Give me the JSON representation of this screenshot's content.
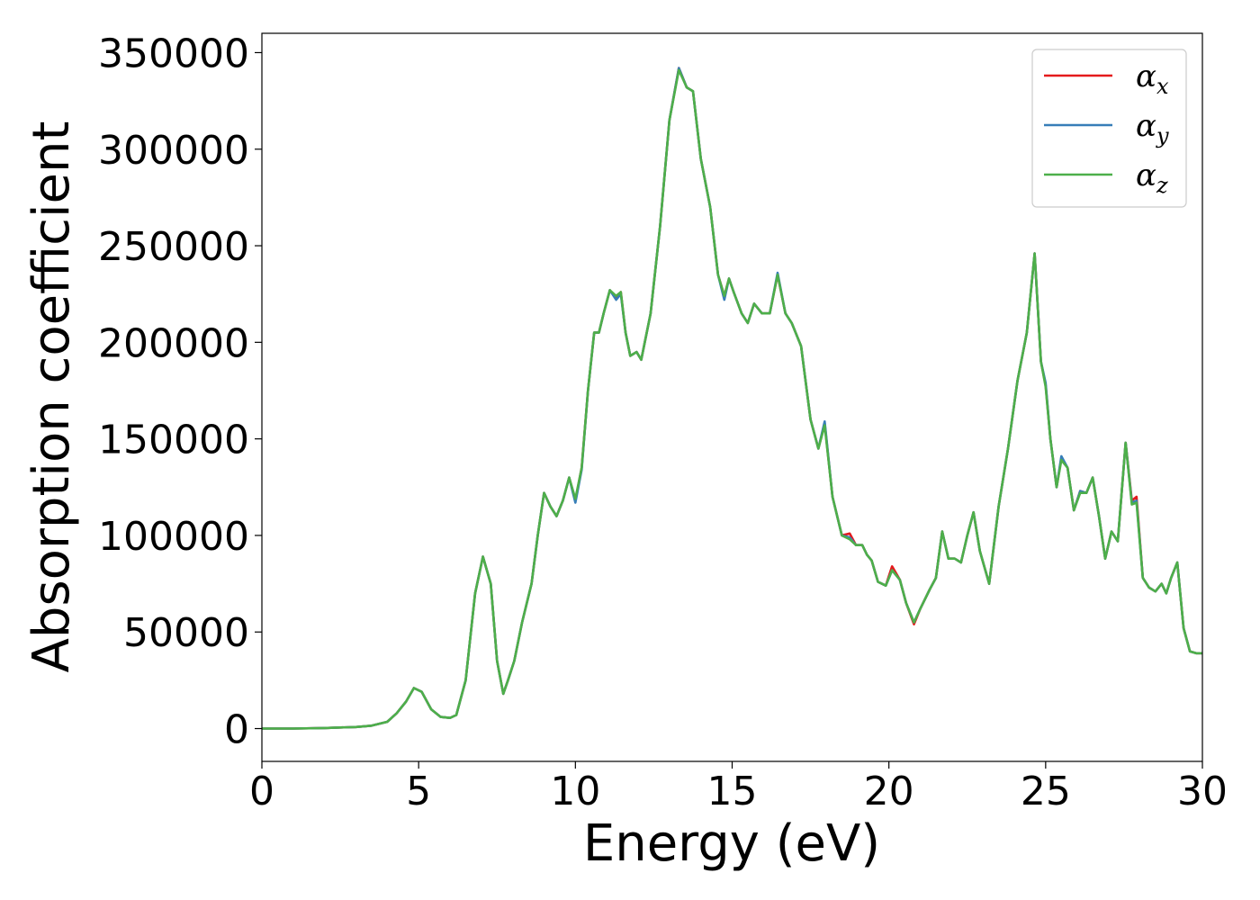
{
  "chart_data": {
    "type": "line",
    "title": "",
    "xlabel": "Energy (eV)",
    "ylabel": "Absorption coefficient",
    "xlim": [
      0,
      30
    ],
    "ylim": [
      -17000,
      360000
    ],
    "xticks": [
      0,
      5,
      10,
      15,
      20,
      25,
      30
    ],
    "xtick_labels": [
      "0",
      "5",
      "10",
      "15",
      "20",
      "25",
      "30"
    ],
    "yticks": [
      0,
      50000,
      100000,
      150000,
      200000,
      250000,
      300000,
      350000
    ],
    "ytick_labels": [
      "0",
      "50000",
      "100000",
      "150000",
      "200000",
      "250000",
      "300000",
      "350000"
    ],
    "grid": false,
    "legend_position": "top-right",
    "legend": [
      {
        "base": "α",
        "sub": "x",
        "color": "#e41a1c"
      },
      {
        "base": "α",
        "sub": "y",
        "color": "#377eb8"
      },
      {
        "base": "α",
        "sub": "z",
        "color": "#4daf4a"
      }
    ],
    "series": [
      {
        "name": "αx",
        "color": "#e41a1c",
        "x": [
          0,
          1,
          2,
          3,
          3.5,
          4,
          4.3,
          4.6,
          4.85,
          5.1,
          5.4,
          5.7,
          6.0,
          6.2,
          6.5,
          6.8,
          7.05,
          7.3,
          7.5,
          7.7,
          7.85,
          8.05,
          8.3,
          8.6,
          8.8,
          9.0,
          9.2,
          9.4,
          9.6,
          9.8,
          10.0,
          10.2,
          10.4,
          10.6,
          10.75,
          10.9,
          11.1,
          11.3,
          11.45,
          11.6,
          11.75,
          11.95,
          12.1,
          12.4,
          12.7,
          13.0,
          13.3,
          13.55,
          13.75,
          14.0,
          14.3,
          14.55,
          14.75,
          14.9,
          15.05,
          15.3,
          15.5,
          15.7,
          15.95,
          16.2,
          16.45,
          16.7,
          16.9,
          17.2,
          17.5,
          17.75,
          17.95,
          18.2,
          18.5,
          18.75,
          18.95,
          19.15,
          19.3,
          19.45,
          19.65,
          19.9,
          20.1,
          20.35,
          20.55,
          20.8,
          21.0,
          21.3,
          21.5,
          21.7,
          21.9,
          22.1,
          22.3,
          22.5,
          22.7,
          22.9,
          23.2,
          23.5,
          23.8,
          24.1,
          24.4,
          24.65,
          24.85,
          25.0,
          25.15,
          25.35,
          25.5,
          25.7,
          25.9,
          26.1,
          26.3,
          26.5,
          26.7,
          26.9,
          27.1,
          27.3,
          27.55,
          27.75,
          27.9,
          28.1,
          28.3,
          28.5,
          28.7,
          28.85,
          29.0,
          29.2,
          29.4,
          29.6,
          29.8,
          30.0
        ],
        "y": [
          0,
          0,
          300,
          800,
          1500,
          3500,
          8000,
          14000,
          21000,
          19000,
          10000,
          6000,
          5500,
          7000,
          25000,
          70000,
          89000,
          75000,
          35000,
          18000,
          25000,
          35000,
          55000,
          75000,
          100000,
          122000,
          115000,
          110000,
          118000,
          130000,
          118000,
          135000,
          175000,
          205000,
          205000,
          215000,
          227000,
          223000,
          226000,
          205000,
          193000,
          195000,
          191000,
          215000,
          260000,
          315000,
          342000,
          332000,
          330000,
          295000,
          270000,
          235000,
          224000,
          233000,
          226000,
          215000,
          210000,
          220000,
          215000,
          215000,
          235000,
          215000,
          210000,
          198000,
          160000,
          145000,
          158000,
          120000,
          100000,
          101000,
          95000,
          95000,
          90000,
          87000,
          76000,
          74000,
          84000,
          77000,
          65000,
          54000,
          62000,
          72000,
          78000,
          102000,
          88000,
          88000,
          86000,
          100000,
          112000,
          92000,
          75000,
          115000,
          145000,
          180000,
          205000,
          246000,
          190000,
          178000,
          150000,
          125000,
          140000,
          135000,
          113000,
          123000,
          122000,
          130000,
          110000,
          88000,
          102000,
          97000,
          148000,
          118000,
          120000,
          78000,
          73000,
          71000,
          75000,
          70000,
          78000,
          86000,
          52000,
          40000,
          39000,
          39000
        ],
        "y_label": "Absorption coefficient"
      },
      {
        "name": "αy",
        "color": "#377eb8",
        "x": [
          0,
          1,
          2,
          3,
          3.5,
          4,
          4.3,
          4.6,
          4.85,
          5.1,
          5.4,
          5.7,
          6.0,
          6.2,
          6.5,
          6.8,
          7.05,
          7.3,
          7.5,
          7.7,
          7.85,
          8.05,
          8.3,
          8.6,
          8.8,
          9.0,
          9.2,
          9.4,
          9.6,
          9.8,
          10.0,
          10.2,
          10.4,
          10.6,
          10.75,
          10.9,
          11.1,
          11.3,
          11.45,
          11.6,
          11.75,
          11.95,
          12.1,
          12.4,
          12.7,
          13.0,
          13.3,
          13.55,
          13.75,
          14.0,
          14.3,
          14.55,
          14.75,
          14.9,
          15.05,
          15.3,
          15.5,
          15.7,
          15.95,
          16.2,
          16.45,
          16.7,
          16.9,
          17.2,
          17.5,
          17.75,
          17.95,
          18.2,
          18.5,
          18.75,
          18.95,
          19.15,
          19.3,
          19.45,
          19.65,
          19.9,
          20.1,
          20.35,
          20.55,
          20.8,
          21.0,
          21.3,
          21.5,
          21.7,
          21.9,
          22.1,
          22.3,
          22.5,
          22.7,
          22.9,
          23.2,
          23.5,
          23.8,
          24.1,
          24.4,
          24.65,
          24.85,
          25.0,
          25.15,
          25.35,
          25.5,
          25.7,
          25.9,
          26.1,
          26.3,
          26.5,
          26.7,
          26.9,
          27.1,
          27.3,
          27.55,
          27.75,
          27.9,
          28.1,
          28.3,
          28.5,
          28.7,
          28.85,
          29.0,
          29.2,
          29.4,
          29.6,
          29.8,
          30.0
        ],
        "y": [
          0,
          0,
          300,
          800,
          1500,
          3500,
          8000,
          14000,
          21000,
          19000,
          10000,
          6000,
          5500,
          7000,
          25000,
          70000,
          89000,
          75000,
          35000,
          18000,
          25000,
          35000,
          55000,
          75000,
          100000,
          122000,
          115000,
          110000,
          118000,
          130000,
          117000,
          134000,
          175000,
          205000,
          205000,
          215000,
          227000,
          222000,
          225000,
          205000,
          193000,
          195000,
          191000,
          215000,
          260000,
          315000,
          342000,
          332000,
          330000,
          295000,
          270000,
          235000,
          222000,
          233000,
          226000,
          215000,
          210000,
          220000,
          215000,
          215000,
          236000,
          215000,
          210000,
          198000,
          160000,
          145000,
          159000,
          120000,
          100000,
          99000,
          95000,
          95000,
          90000,
          87000,
          76000,
          74000,
          82000,
          77000,
          65000,
          55000,
          62000,
          72000,
          78000,
          102000,
          88000,
          88000,
          86000,
          100000,
          112000,
          92000,
          75000,
          115000,
          145000,
          180000,
          205000,
          246000,
          190000,
          179000,
          150000,
          125000,
          141000,
          135000,
          113000,
          123000,
          122000,
          130000,
          110000,
          88000,
          102000,
          97000,
          148000,
          117000,
          118000,
          78000,
          73000,
          71000,
          75000,
          70000,
          78000,
          86000,
          52000,
          40000,
          39000,
          39000
        ]
      },
      {
        "name": "αz",
        "color": "#4daf4a",
        "x": [
          0,
          1,
          2,
          3,
          3.5,
          4,
          4.3,
          4.6,
          4.85,
          5.1,
          5.4,
          5.7,
          6.0,
          6.2,
          6.5,
          6.8,
          7.05,
          7.3,
          7.5,
          7.7,
          7.85,
          8.05,
          8.3,
          8.6,
          8.8,
          9.0,
          9.2,
          9.4,
          9.6,
          9.8,
          10.0,
          10.2,
          10.4,
          10.6,
          10.75,
          10.9,
          11.1,
          11.3,
          11.45,
          11.6,
          11.75,
          11.95,
          12.1,
          12.4,
          12.7,
          13.0,
          13.3,
          13.55,
          13.75,
          14.0,
          14.3,
          14.55,
          14.75,
          14.9,
          15.05,
          15.3,
          15.5,
          15.7,
          15.95,
          16.2,
          16.45,
          16.7,
          16.9,
          17.2,
          17.5,
          17.75,
          17.95,
          18.2,
          18.5,
          18.75,
          18.95,
          19.15,
          19.3,
          19.45,
          19.65,
          19.9,
          20.1,
          20.35,
          20.55,
          20.8,
          21.0,
          21.3,
          21.5,
          21.7,
          21.9,
          22.1,
          22.3,
          22.5,
          22.7,
          22.9,
          23.2,
          23.5,
          23.8,
          24.1,
          24.4,
          24.65,
          24.85,
          25.0,
          25.15,
          25.35,
          25.5,
          25.7,
          25.9,
          26.1,
          26.3,
          26.5,
          26.7,
          26.9,
          27.1,
          27.3,
          27.55,
          27.75,
          27.9,
          28.1,
          28.3,
          28.5,
          28.7,
          28.85,
          29.0,
          29.2,
          29.4,
          29.6,
          29.8,
          30.0
        ],
        "y": [
          0,
          0,
          300,
          800,
          1500,
          3500,
          8000,
          14000,
          21000,
          19000,
          10000,
          6000,
          5500,
          7000,
          25000,
          70000,
          89000,
          75000,
          35000,
          18000,
          25000,
          35000,
          55000,
          75000,
          100000,
          122000,
          115000,
          110000,
          118000,
          130000,
          119000,
          135000,
          175000,
          205000,
          205000,
          215000,
          227000,
          224000,
          226000,
          205000,
          193000,
          195000,
          191000,
          215000,
          260000,
          315000,
          341000,
          332000,
          330000,
          295000,
          270000,
          235000,
          224000,
          233000,
          226000,
          215000,
          210000,
          220000,
          215000,
          215000,
          235000,
          215000,
          210000,
          198000,
          160000,
          145000,
          157000,
          120000,
          100000,
          98000,
          95000,
          95000,
          90000,
          87000,
          76000,
          74000,
          82000,
          77000,
          65000,
          55000,
          62000,
          72000,
          78000,
          102000,
          88000,
          88000,
          86000,
          100000,
          112000,
          92000,
          75000,
          115000,
          145000,
          180000,
          205000,
          246000,
          190000,
          177000,
          150000,
          125000,
          139000,
          135000,
          113000,
          122000,
          122000,
          130000,
          110000,
          88000,
          102000,
          97000,
          148000,
          116000,
          117000,
          78000,
          73000,
          71000,
          75000,
          70000,
          78000,
          86000,
          52000,
          40000,
          39000,
          39000
        ]
      }
    ]
  }
}
